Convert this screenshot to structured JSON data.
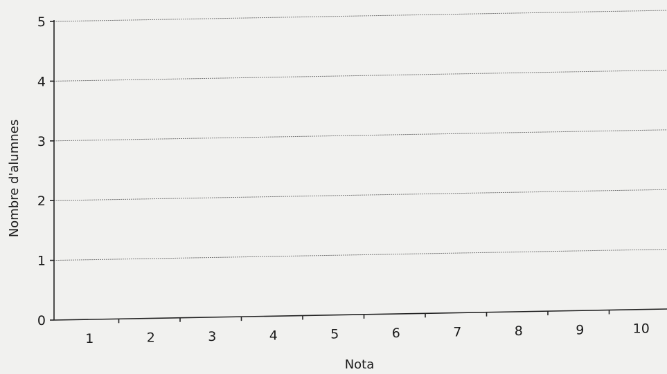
{
  "chart_data": {
    "type": "bar",
    "title": "",
    "xlabel": "Nota",
    "ylabel": "Nombre d'alumnes",
    "categories": [
      "1",
      "2",
      "3",
      "4",
      "5",
      "6",
      "7",
      "8",
      "9",
      "10"
    ],
    "values": [
      0,
      0,
      0,
      0,
      0,
      0,
      0,
      0,
      0,
      0
    ],
    "ylim": [
      0,
      5
    ],
    "yticks": [
      "0",
      "1",
      "2",
      "3",
      "4",
      "5"
    ],
    "grid": true,
    "legend": "none"
  }
}
